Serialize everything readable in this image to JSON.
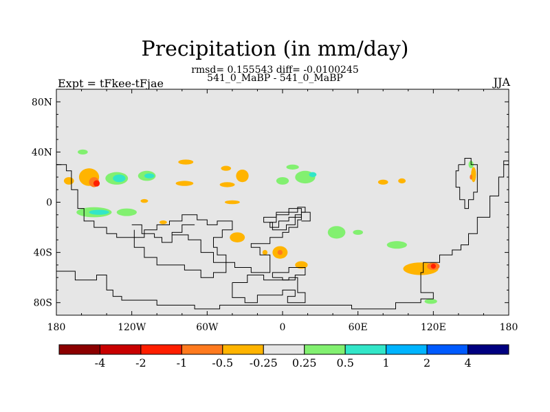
{
  "title": "Precipitation (in mm/day)",
  "subtitle": "rmsd= 0.155543 diff= -0.0100245",
  "subtitle2": "541_0_MaBP - 541_0_MaBP",
  "left_label": "Expt = tFkee-tFjae",
  "right_label": "JJA",
  "chart_data": {
    "type": "heatmap",
    "title": "Precipitation (in mm/day)",
    "projection": "cylindrical equidistant",
    "background_value": "-0.25 to 0.25",
    "xlim": [
      -180,
      180
    ],
    "ylim": [
      -90,
      90
    ],
    "x_ticks": [
      {
        "value": -180,
        "label": "180"
      },
      {
        "value": -120,
        "label": "120W"
      },
      {
        "value": -60,
        "label": "60W"
      },
      {
        "value": 0,
        "label": "0"
      },
      {
        "value": 60,
        "label": "60E"
      },
      {
        "value": 120,
        "label": "120E"
      },
      {
        "value": 180,
        "label": "180"
      }
    ],
    "y_ticks": [
      {
        "value": 80,
        "label": "80N"
      },
      {
        "value": 40,
        "label": "40N"
      },
      {
        "value": 0,
        "label": "0"
      },
      {
        "value": -40,
        "label": "40S"
      },
      {
        "value": -80,
        "label": "80S"
      }
    ],
    "colorbar": {
      "colors": [
        "#8b0000",
        "#c80000",
        "#ff1e00",
        "#ff7a1e",
        "#ffb400",
        "#e6e6e6",
        "#82f070",
        "#32e6c8",
        "#00b4ff",
        "#005aff",
        "#000080"
      ],
      "labels": [
        "-4",
        "-2",
        "-1",
        "-0.5",
        "-0.25",
        "0.25",
        "0.5",
        "1",
        "2",
        "4"
      ]
    },
    "regions": [
      {
        "lon": -154,
        "lat": 20,
        "rlon": 8,
        "rlat": 7,
        "color": "#ffb400"
      },
      {
        "lon": -150,
        "lat": 16,
        "rlon": 4,
        "rlat": 4,
        "color": "#ff7a1e"
      },
      {
        "lon": -148,
        "lat": 15,
        "rlon": 2.5,
        "rlat": 2.5,
        "color": "#ff1e00"
      },
      {
        "lon": -132,
        "lat": 19,
        "rlon": 9,
        "rlat": 5,
        "color": "#82f070"
      },
      {
        "lon": -130,
        "lat": 19,
        "rlon": 5,
        "rlat": 3,
        "color": "#32e6c8"
      },
      {
        "lon": -108,
        "lat": 21,
        "rlon": 7,
        "rlat": 4,
        "color": "#82f070"
      },
      {
        "lon": -106,
        "lat": 21,
        "rlon": 4,
        "rlat": 2,
        "color": "#32e6c8"
      },
      {
        "lon": -170,
        "lat": 17,
        "rlon": 4,
        "rlat": 3,
        "color": "#ffb400"
      },
      {
        "lon": -159,
        "lat": 40,
        "rlon": 4,
        "rlat": 2,
        "color": "#82f070"
      },
      {
        "lon": -150,
        "lat": -8,
        "rlon": 14,
        "rlat": 4,
        "color": "#82f070"
      },
      {
        "lon": -146,
        "lat": -8,
        "rlon": 8,
        "rlat": 2,
        "color": "#32e6c8"
      },
      {
        "lon": -124,
        "lat": -8,
        "rlon": 8,
        "rlat": 3,
        "color": "#82f070"
      },
      {
        "lon": -36,
        "lat": -28,
        "rlon": 6,
        "rlat": 4,
        "color": "#ffb400"
      },
      {
        "lon": -14,
        "lat": -40,
        "rlon": 2,
        "rlat": 2,
        "color": "#ffb400"
      },
      {
        "lon": -2,
        "lat": -40,
        "rlon": 6,
        "rlat": 5,
        "color": "#ffb400"
      },
      {
        "lon": -2,
        "lat": -40,
        "rlon": 2,
        "rlat": 2,
        "color": "#ff7a1e"
      },
      {
        "lon": 15,
        "lat": -50,
        "rlon": 5,
        "rlat": 3,
        "color": "#ffb400"
      },
      {
        "lon": 110,
        "lat": -53,
        "rlon": 14,
        "rlat": 5,
        "color": "#ffb400"
      },
      {
        "lon": 120,
        "lat": -51,
        "rlon": 5,
        "rlat": 3,
        "color": "#ff7a1e"
      },
      {
        "lon": 120,
        "lat": -51,
        "rlon": 2,
        "rlat": 2,
        "color": "#ff1e00"
      },
      {
        "lon": 118,
        "lat": -79,
        "rlon": 5,
        "rlat": 2,
        "color": "#82f070"
      },
      {
        "lon": 91,
        "lat": -34,
        "rlon": 8,
        "rlat": 3,
        "color": "#82f070"
      },
      {
        "lon": 60,
        "lat": -24,
        "rlon": 4,
        "rlat": 2,
        "color": "#82f070"
      },
      {
        "lon": 43,
        "lat": -24,
        "rlon": 7,
        "rlat": 5,
        "color": "#82f070"
      },
      {
        "lon": 18,
        "lat": 20,
        "rlon": 8,
        "rlat": 5,
        "color": "#82f070"
      },
      {
        "lon": 24,
        "lat": 22,
        "rlon": 3,
        "rlat": 2,
        "color": "#32e6c8"
      },
      {
        "lon": 0,
        "lat": 17,
        "rlon": 5,
        "rlat": 3,
        "color": "#82f070"
      },
      {
        "lon": -32,
        "lat": 21,
        "rlon": 5,
        "rlat": 5,
        "color": "#ffb400"
      },
      {
        "lon": -45,
        "lat": 27,
        "rlon": 4,
        "rlat": 2,
        "color": "#ffb400"
      },
      {
        "lon": -77,
        "lat": 32,
        "rlon": 6,
        "rlat": 2,
        "color": "#ffb400"
      },
      {
        "lon": -78,
        "lat": 15,
        "rlon": 7,
        "rlat": 2,
        "color": "#ffb400"
      },
      {
        "lon": -44,
        "lat": 14,
        "rlon": 6,
        "rlat": 2,
        "color": "#ffb400"
      },
      {
        "lon": 8,
        "lat": 28,
        "rlon": 5,
        "rlat": 2,
        "color": "#82f070"
      },
      {
        "lon": 80,
        "lat": 16,
        "rlon": 4,
        "rlat": 2,
        "color": "#ffb400"
      },
      {
        "lon": 95,
        "lat": 17,
        "rlon": 3,
        "rlat": 2,
        "color": "#ffb400"
      },
      {
        "lon": 152,
        "lat": 22,
        "rlon": 2,
        "rlat": 6,
        "color": "#ffb400"
      },
      {
        "lon": 150,
        "lat": 20,
        "rlon": 1,
        "rlat": 2,
        "color": "#ff7a1e"
      },
      {
        "lon": 150,
        "lat": 30,
        "rlon": 2,
        "rlat": 3,
        "color": "#82f070"
      },
      {
        "lon": -40,
        "lat": 0,
        "rlon": 6,
        "rlat": 1.5,
        "color": "#ffb400"
      },
      {
        "lon": -110,
        "lat": 1,
        "rlon": 3,
        "rlat": 1.5,
        "color": "#ffb400"
      },
      {
        "lon": -95,
        "lat": -16,
        "rlon": 3,
        "rlat": 1.5,
        "color": "#ffb400"
      }
    ]
  }
}
